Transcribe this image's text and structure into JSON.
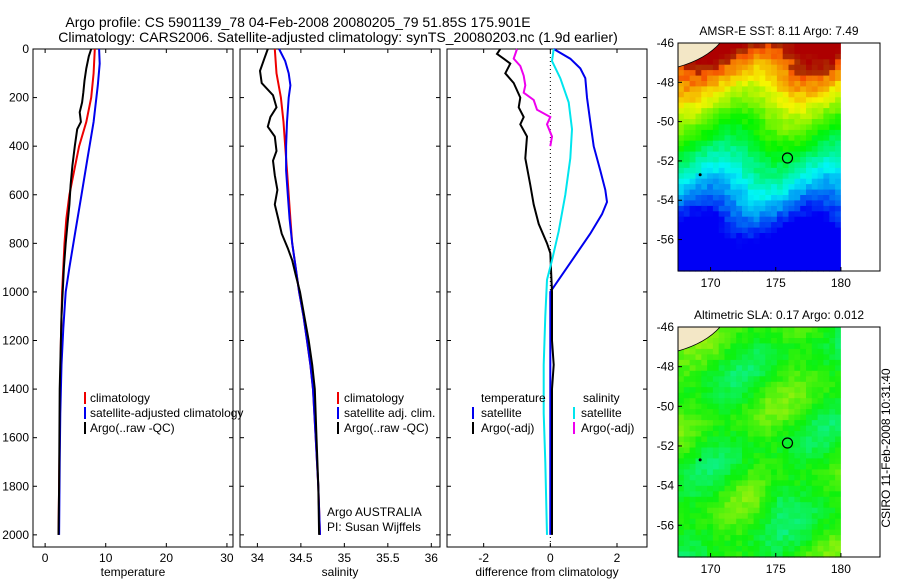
{
  "title": {
    "line1": "Argo profile: CS 5901139_78 04-Feb-2008 20080205_79 51.85S 175.901E",
    "line2": "Climatology: CARS2006. Satellite-adjusted climatology: synTS_20080203.nc (1.9d earlier)"
  },
  "colors": {
    "clim": "#ee0000",
    "sat": "#0000ee",
    "argo": "#000000",
    "sat_diff_sal": "#00e5ee",
    "argo_diff_sal": "#ee00ee"
  },
  "annotations": {
    "institution": "Argo AUSTRALIA",
    "pi": "PI: Susan Wijffels",
    "timestamp": "CSIRO 11-Feb-2008 10:31:40"
  },
  "chart_data": [
    {
      "type": "line",
      "id": "temperature",
      "xlabel": "temperature",
      "xlim": [
        -2,
        31
      ],
      "ylim": [
        0,
        2050
      ],
      "xticks": [
        0,
        10,
        20,
        30
      ],
      "yticks": [
        0,
        200,
        400,
        600,
        800,
        1000,
        1200,
        1400,
        1600,
        1800,
        2000
      ],
      "legend": [
        "climatology",
        "satellite-adjusted climatology",
        "Argo(..raw -QC)"
      ],
      "series": [
        {
          "name": "climatology",
          "color_key": "clim",
          "points": [
            [
              8.2,
              0
            ],
            [
              8.0,
              100
            ],
            [
              7.6,
              200
            ],
            [
              6.8,
              300
            ],
            [
              5.6,
              400
            ],
            [
              4.8,
              500
            ],
            [
              4.0,
              600
            ],
            [
              3.5,
              700
            ],
            [
              3.2,
              800
            ],
            [
              3.0,
              900
            ],
            [
              2.8,
              1000
            ],
            [
              2.6,
              1200
            ],
            [
              2.5,
              1400
            ],
            [
              2.4,
              1600
            ],
            [
              2.3,
              1800
            ],
            [
              2.2,
              2000
            ]
          ]
        },
        {
          "name": "satellite-adjusted climatology",
          "color_key": "sat",
          "points": [
            [
              8.9,
              0
            ],
            [
              9.0,
              60
            ],
            [
              8.7,
              150
            ],
            [
              8.0,
              300
            ],
            [
              7.0,
              450
            ],
            [
              6.0,
              600
            ],
            [
              5.0,
              750
            ],
            [
              4.0,
              900
            ],
            [
              3.4,
              1000
            ],
            [
              3.0,
              1150
            ],
            [
              2.7,
              1300
            ],
            [
              2.5,
              1500
            ],
            [
              2.4,
              1700
            ],
            [
              2.3,
              2000
            ]
          ]
        },
        {
          "name": "Argo(..raw -QC)",
          "color_key": "argo",
          "points": [
            [
              7.6,
              0
            ],
            [
              7.2,
              30
            ],
            [
              6.8,
              80
            ],
            [
              6.5,
              130
            ],
            [
              6.3,
              180
            ],
            [
              6.1,
              220
            ],
            [
              5.7,
              260
            ],
            [
              5.9,
              300
            ],
            [
              5.3,
              330
            ],
            [
              4.9,
              400
            ],
            [
              4.5,
              480
            ],
            [
              4.2,
              560
            ],
            [
              4.0,
              640
            ],
            [
              3.7,
              720
            ],
            [
              3.4,
              800
            ],
            [
              3.1,
              900
            ],
            [
              2.9,
              1000
            ],
            [
              2.7,
              1100
            ],
            [
              2.6,
              1200
            ],
            [
              2.5,
              1300
            ],
            [
              2.4,
              1400
            ],
            [
              2.35,
              1600
            ],
            [
              2.3,
              1800
            ],
            [
              2.2,
              2000
            ]
          ]
        }
      ]
    },
    {
      "type": "line",
      "id": "salinity",
      "xlabel": "salinity",
      "xlim": [
        33.8,
        36.1
      ],
      "ylim": [
        0,
        2050
      ],
      "xticks": [
        34,
        34.5,
        35,
        35.5,
        36
      ],
      "legend": [
        "climatology",
        "satellite adj. clim.",
        "Argo(..raw -QC)"
      ],
      "series": [
        {
          "name": "climatology",
          "color_key": "clim",
          "points": [
            [
              34.2,
              0
            ],
            [
              34.22,
              100
            ],
            [
              34.27,
              200
            ],
            [
              34.3,
              300
            ],
            [
              34.32,
              400
            ],
            [
              34.34,
              500
            ],
            [
              34.36,
              600
            ],
            [
              34.38,
              700
            ],
            [
              34.4,
              800
            ],
            [
              34.44,
              900
            ],
            [
              34.48,
              1000
            ],
            [
              34.53,
              1100
            ],
            [
              34.57,
              1200
            ],
            [
              34.61,
              1300
            ],
            [
              34.64,
              1400
            ],
            [
              34.67,
              1600
            ],
            [
              34.7,
              1800
            ],
            [
              34.72,
              2000
            ]
          ]
        },
        {
          "name": "satellite adj. clim.",
          "color_key": "sat",
          "points": [
            [
              34.25,
              0
            ],
            [
              34.32,
              50
            ],
            [
              34.36,
              100
            ],
            [
              34.38,
              150
            ],
            [
              34.36,
              200
            ],
            [
              34.34,
              300
            ],
            [
              34.33,
              400
            ],
            [
              34.33,
              500
            ],
            [
              34.35,
              600
            ],
            [
              34.37,
              700
            ],
            [
              34.4,
              800
            ],
            [
              34.44,
              900
            ],
            [
              34.48,
              1000
            ],
            [
              34.53,
              1100
            ],
            [
              34.57,
              1200
            ],
            [
              34.61,
              1300
            ],
            [
              34.64,
              1400
            ],
            [
              34.67,
              1600
            ],
            [
              34.7,
              1800
            ],
            [
              34.72,
              2000
            ]
          ]
        },
        {
          "name": "Argo(..raw -QC)",
          "color_key": "argo",
          "points": [
            [
              34.12,
              0
            ],
            [
              34.08,
              40
            ],
            [
              34.03,
              90
            ],
            [
              34.05,
              140
            ],
            [
              34.18,
              190
            ],
            [
              34.22,
              240
            ],
            [
              34.15,
              280
            ],
            [
              34.12,
              320
            ],
            [
              34.2,
              360
            ],
            [
              34.22,
              420
            ],
            [
              34.18,
              460
            ],
            [
              34.2,
              520
            ],
            [
              34.23,
              580
            ],
            [
              34.2,
              640
            ],
            [
              34.24,
              700
            ],
            [
              34.28,
              760
            ],
            [
              34.35,
              820
            ],
            [
              34.4,
              870
            ],
            [
              34.44,
              930
            ],
            [
              34.49,
              1000
            ],
            [
              34.54,
              1100
            ],
            [
              34.59,
              1200
            ],
            [
              34.63,
              1300
            ],
            [
              34.66,
              1400
            ],
            [
              34.68,
              1600
            ],
            [
              34.7,
              1800
            ],
            [
              34.71,
              2000
            ]
          ]
        }
      ]
    },
    {
      "type": "line",
      "id": "difference",
      "xlabel": "difference from climatology",
      "xlim": [
        -3.1,
        2.9
      ],
      "ylim": [
        0,
        2050
      ],
      "xticks": [
        -2,
        0,
        2
      ],
      "legend": [
        "temperature",
        "salinity",
        "satellite",
        "Argo(-adj)",
        "satellite",
        "Argo(-adj)"
      ],
      "series": [
        {
          "name": "temperature satellite",
          "color_key": "sat",
          "points": [
            [
              0.1,
              0
            ],
            [
              0.6,
              40
            ],
            [
              0.9,
              80
            ],
            [
              1.05,
              120
            ],
            [
              1.1,
              200
            ],
            [
              1.2,
              300
            ],
            [
              1.3,
              400
            ],
            [
              1.5,
              500
            ],
            [
              1.65,
              580
            ],
            [
              1.7,
              630
            ],
            [
              1.55,
              680
            ],
            [
              1.2,
              760
            ],
            [
              0.6,
              880
            ],
            [
              0.0,
              1000
            ],
            [
              0.0,
              2000
            ]
          ]
        },
        {
          "name": "temperature Argo(-adj)",
          "color_key": "argo",
          "points": [
            [
              -1.5,
              0
            ],
            [
              -1.6,
              20
            ],
            [
              -1.4,
              40
            ],
            [
              -1.2,
              60
            ],
            [
              -1.35,
              100
            ],
            [
              -1.1,
              140
            ],
            [
              -0.9,
              200
            ],
            [
              -0.95,
              240
            ],
            [
              -0.8,
              280
            ],
            [
              -0.9,
              310
            ],
            [
              -0.7,
              360
            ],
            [
              -0.75,
              450
            ],
            [
              -0.6,
              560
            ],
            [
              -0.5,
              640
            ],
            [
              -0.35,
              720
            ],
            [
              -0.1,
              800
            ],
            [
              0.0,
              840
            ],
            [
              0.05,
              1000
            ],
            [
              0.05,
              1200
            ],
            [
              0.1,
              1300
            ],
            [
              0.05,
              1400
            ],
            [
              0.05,
              1600
            ],
            [
              0.05,
              1800
            ],
            [
              0.05,
              2000
            ]
          ]
        },
        {
          "name": "salinity satellite",
          "color_key": "sat_diff_sal",
          "points": [
            [
              0.1,
              0
            ],
            [
              0.05,
              50
            ],
            [
              0.3,
              120
            ],
            [
              0.55,
              220
            ],
            [
              0.65,
              330
            ],
            [
              0.6,
              450
            ],
            [
              0.45,
              600
            ],
            [
              0.25,
              750
            ],
            [
              0.05,
              870
            ],
            [
              -0.1,
              950
            ],
            [
              -0.15,
              1100
            ],
            [
              -0.2,
              1300
            ],
            [
              -0.2,
              1500
            ],
            [
              -0.15,
              1700
            ],
            [
              -0.1,
              2000
            ]
          ]
        },
        {
          "name": "salinity Argo(-adj)",
          "color_key": "argo_diff_sal",
          "points": [
            [
              -1.0,
              0
            ],
            [
              -1.1,
              40
            ],
            [
              -0.9,
              70
            ],
            [
              -0.8,
              110
            ],
            [
              -0.75,
              150
            ],
            [
              -0.8,
              180
            ],
            [
              -0.5,
              210
            ],
            [
              -0.4,
              250
            ],
            [
              0.0,
              280
            ],
            [
              -0.1,
              310
            ],
            [
              0.05,
              360
            ],
            [
              0.0,
              400
            ]
          ]
        }
      ]
    },
    {
      "type": "heatmap",
      "id": "sst_map",
      "title": "AMSR-E SST: 8.11  Argo: 7.49",
      "xlim": [
        167.5,
        183
      ],
      "ylim": [
        -57.6,
        -46
      ],
      "data_xmax": 180,
      "xticks": [
        170,
        175,
        180
      ],
      "yticks": [
        -46,
        -48,
        -50,
        -52,
        -54,
        -56
      ],
      "ytick_labels": [
        "-46",
        "-48",
        "-50",
        "-52",
        "-54",
        "-56"
      ],
      "float_position": [
        175.9,
        -51.85
      ],
      "colorbar_range": [
        4,
        14
      ]
    },
    {
      "type": "heatmap",
      "id": "sla_map",
      "title": "Altimetric SLA: 0.17  Argo: 0.012",
      "xlim": [
        167.5,
        183
      ],
      "ylim": [
        -57.6,
        -46
      ],
      "data_xmax": 180,
      "xticks": [
        170,
        175,
        180
      ],
      "yticks": [
        -46,
        -48,
        -50,
        -52,
        -54,
        -56
      ],
      "ytick_labels": [
        "-46",
        "-48",
        "-50",
        "-52",
        "-54",
        "-56"
      ],
      "float_position": [
        175.9,
        -51.85
      ],
      "colorbar_range": [
        -0.4,
        0.4
      ]
    }
  ]
}
